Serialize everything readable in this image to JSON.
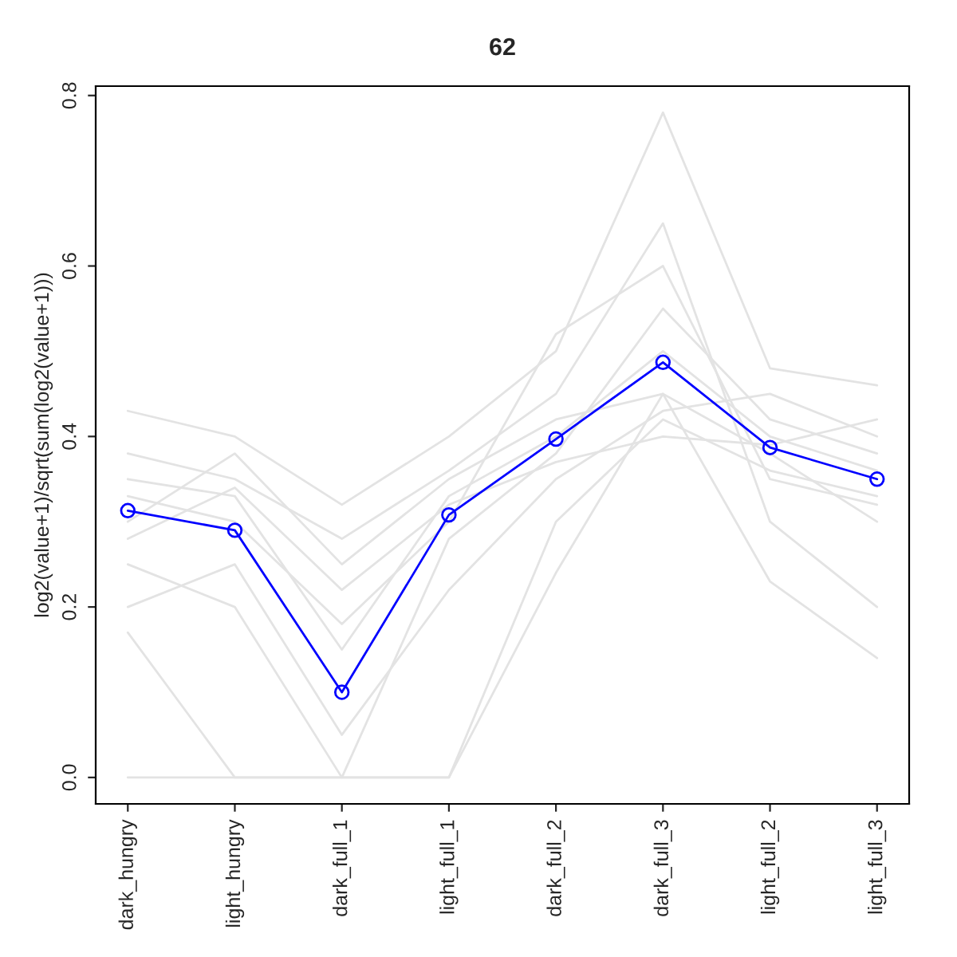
{
  "chart_data": {
    "type": "line",
    "title": "62",
    "ylabel": "log2(value+1)/sqrt(sum(log2(value+1)))",
    "categories": [
      "dark_hungry",
      "light_hungry",
      "dark_full_1",
      "light_full_1",
      "dark_full_2",
      "dark_full_3",
      "light_full_2",
      "light_full_3"
    ],
    "ylim": [
      -0.031,
      0.811
    ],
    "yticks": [
      {
        "value": 0,
        "label": "0.0"
      },
      {
        "value": 0.2,
        "label": "0.2"
      },
      {
        "value": 0.4,
        "label": "0.4"
      },
      {
        "value": 0.6,
        "label": "0.6"
      },
      {
        "value": 0.8,
        "label": "0.8"
      }
    ],
    "grid": false,
    "line_style": "solid",
    "series": [
      {
        "color": "#e3e3e3",
        "marker": "none",
        "values": [
          0.43,
          0.4,
          0.32,
          0.4,
          0.5,
          0.78,
          0.48,
          0.46
        ]
      },
      {
        "color": "#e3e3e3",
        "marker": "none",
        "values": [
          0.17,
          0.0,
          0.0,
          0.0,
          0.24,
          0.45,
          0.23,
          0.14
        ]
      },
      {
        "color": "#e3e3e3",
        "marker": "none",
        "values": [
          0.0,
          0.0,
          0.0,
          0.0,
          0.3,
          0.42,
          0.36,
          0.33
        ]
      },
      {
        "color": "#e3e3e3",
        "marker": "none",
        "values": [
          0.35,
          0.33,
          0.15,
          0.33,
          0.4,
          0.5,
          0.4,
          0.36
        ]
      },
      {
        "color": "#e3e3e3",
        "marker": "none",
        "values": [
          0.3,
          0.38,
          0.25,
          0.35,
          0.42,
          0.45,
          0.38,
          0.3
        ]
      },
      {
        "color": "#e3e3e3",
        "marker": "none",
        "values": [
          0.25,
          0.2,
          0.0,
          0.28,
          0.38,
          0.55,
          0.42,
          0.38
        ]
      },
      {
        "color": "#e3e3e3",
        "marker": "none",
        "values": [
          0.38,
          0.35,
          0.28,
          0.36,
          0.45,
          0.65,
          0.3,
          0.2
        ]
      },
      {
        "color": "#e3e3e3",
        "marker": "none",
        "values": [
          0.2,
          0.25,
          0.05,
          0.22,
          0.35,
          0.43,
          0.45,
          0.4
        ]
      },
      {
        "color": "#e3e3e3",
        "marker": "none",
        "values": [
          0.33,
          0.3,
          0.18,
          0.3,
          0.52,
          0.6,
          0.35,
          0.32
        ]
      },
      {
        "color": "#e3e3e3",
        "marker": "none",
        "values": [
          0.28,
          0.34,
          0.22,
          0.32,
          0.37,
          0.4,
          0.39,
          0.42
        ]
      },
      {
        "color": "#0000ff",
        "marker": "circle",
        "values": [
          0.313,
          0.29,
          0.1,
          0.308,
          0.397,
          0.487,
          0.387,
          0.35
        ]
      }
    ]
  }
}
